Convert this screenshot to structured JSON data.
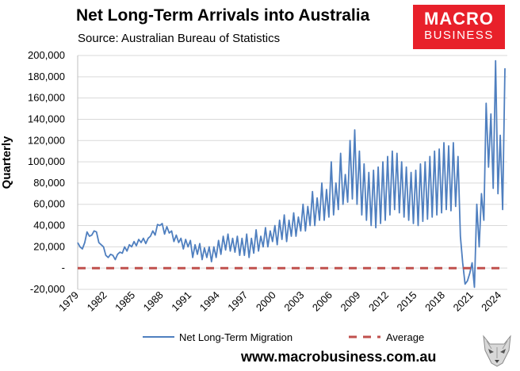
{
  "header": {
    "title": "Net Long-Term Arrivals into Australia",
    "subtitle": "Source: Australian Bureau of Statistics"
  },
  "logo": {
    "line1": "MACRO",
    "line2": "BUSINESS"
  },
  "footer": {
    "url": "www.macrobusiness.com.au"
  },
  "colors": {
    "series": "#4f7fbf",
    "average": "#c0504d",
    "logo_bg": "#e8202a",
    "grid": "#d9d9d9"
  },
  "chart_data": {
    "type": "line",
    "title": "Net Long-Term Arrivals into Australia",
    "ylabel": "Quarterly",
    "ylim": [
      -20000,
      200000
    ],
    "xlim": [
      1979,
      2024.75
    ],
    "grid": true,
    "legend_placement": "bottom",
    "yticks": [
      200000,
      180000,
      160000,
      140000,
      120000,
      100000,
      80000,
      60000,
      40000,
      20000,
      0,
      -20000
    ],
    "ytick_labels": [
      "200,000",
      "180,000",
      "160,000",
      "140,000",
      "120,000",
      "100,000",
      "80,000",
      "60,000",
      "40,000",
      "20,000",
      "-",
      "-20,000"
    ],
    "xticks": [
      1979,
      1982,
      1985,
      1988,
      1991,
      1994,
      1997,
      2000,
      2003,
      2006,
      2009,
      2012,
      2015,
      2018,
      2021,
      2024
    ],
    "xtick_labels": [
      "1979",
      "1982",
      "1985",
      "1988",
      "1991",
      "1994",
      "1997",
      "2000",
      "2003",
      "2006",
      "2009",
      "2012",
      "2015",
      "2018",
      "2021",
      "2024"
    ],
    "series": [
      {
        "name": "Net Long-Term Migration",
        "color": "#4f7fbf",
        "x": [
          1979,
          1979.25,
          1979.5,
          1979.75,
          1980,
          1980.25,
          1980.5,
          1980.75,
          1981,
          1981.25,
          1981.5,
          1981.75,
          1982,
          1982.25,
          1982.5,
          1982.75,
          1983,
          1983.25,
          1983.5,
          1983.75,
          1984,
          1984.25,
          1984.5,
          1984.75,
          1985,
          1985.25,
          1985.5,
          1985.75,
          1986,
          1986.25,
          1986.5,
          1986.75,
          1987,
          1987.25,
          1987.5,
          1987.75,
          1988,
          1988.25,
          1988.5,
          1988.75,
          1989,
          1989.25,
          1989.5,
          1989.75,
          1990,
          1990.25,
          1990.5,
          1990.75,
          1991,
          1991.25,
          1991.5,
          1991.75,
          1992,
          1992.25,
          1992.5,
          1992.75,
          1993,
          1993.25,
          1993.5,
          1993.75,
          1994,
          1994.25,
          1994.5,
          1994.75,
          1995,
          1995.25,
          1995.5,
          1995.75,
          1996,
          1996.25,
          1996.5,
          1996.75,
          1997,
          1997.25,
          1997.5,
          1997.75,
          1998,
          1998.25,
          1998.5,
          1998.75,
          1999,
          1999.25,
          1999.5,
          1999.75,
          2000,
          2000.25,
          2000.5,
          2000.75,
          2001,
          2001.25,
          2001.5,
          2001.75,
          2002,
          2002.25,
          2002.5,
          2002.75,
          2003,
          2003.25,
          2003.5,
          2003.75,
          2004,
          2004.25,
          2004.5,
          2004.75,
          2005,
          2005.25,
          2005.5,
          2005.75,
          2006,
          2006.25,
          2006.5,
          2006.75,
          2007,
          2007.25,
          2007.5,
          2007.75,
          2008,
          2008.25,
          2008.5,
          2008.75,
          2009,
          2009.25,
          2009.5,
          2009.75,
          2010,
          2010.25,
          2010.5,
          2010.75,
          2011,
          2011.25,
          2011.5,
          2011.75,
          2012,
          2012.25,
          2012.5,
          2012.75,
          2013,
          2013.25,
          2013.5,
          2013.75,
          2014,
          2014.25,
          2014.5,
          2014.75,
          2015,
          2015.25,
          2015.5,
          2015.75,
          2016,
          2016.25,
          2016.5,
          2016.75,
          2017,
          2017.25,
          2017.5,
          2017.75,
          2018,
          2018.25,
          2018.5,
          2018.75,
          2019,
          2019.25,
          2019.5,
          2019.75,
          2020,
          2020.25,
          2020.5,
          2020.75,
          2021,
          2021.25,
          2021.5,
          2021.75,
          2022,
          2022.25,
          2022.5,
          2022.75,
          2023,
          2023.25,
          2023.5,
          2023.75,
          2024,
          2024.25,
          2024.5
        ],
        "values": [
          24000,
          20000,
          18000,
          24000,
          34000,
          30000,
          31000,
          35000,
          34000,
          24000,
          22000,
          20000,
          12000,
          10000,
          13000,
          12000,
          8000,
          13000,
          15000,
          14000,
          20000,
          16000,
          22000,
          20000,
          25000,
          21000,
          27000,
          24000,
          28000,
          23000,
          28000,
          30000,
          35000,
          31000,
          41000,
          40000,
          42000,
          32000,
          39000,
          33000,
          35000,
          25000,
          31000,
          24000,
          28000,
          18000,
          27000,
          20000,
          26000,
          10000,
          22000,
          13000,
          23000,
          8000,
          19000,
          10000,
          20000,
          6000,
          20000,
          10000,
          26000,
          13000,
          30000,
          17000,
          32000,
          16000,
          28000,
          15000,
          30000,
          12000,
          28000,
          12000,
          32000,
          10000,
          28000,
          14000,
          36000,
          16000,
          30000,
          20000,
          38000,
          20000,
          35000,
          25000,
          40000,
          22000,
          45000,
          27000,
          50000,
          25000,
          45000,
          30000,
          52000,
          30000,
          48000,
          35000,
          60000,
          35000,
          58000,
          40000,
          72000,
          40000,
          66000,
          45000,
          80000,
          45000,
          74000,
          48000,
          100000,
          50000,
          80000,
          55000,
          108000,
          60000,
          88000,
          62000,
          120000,
          65000,
          130000,
          60000,
          110000,
          50000,
          98000,
          45000,
          90000,
          40000,
          92000,
          38000,
          95000,
          42000,
          100000,
          45000,
          105000,
          50000,
          110000,
          55000,
          108000,
          52000,
          100000,
          48000,
          95000,
          45000,
          90000,
          42000,
          92000,
          40000,
          98000,
          44000,
          100000,
          46000,
          105000,
          48000,
          110000,
          50000,
          112000,
          52000,
          118000,
          55000,
          115000,
          54000,
          118000,
          58000,
          105000,
          30000,
          5000,
          -15000,
          -12000,
          -5000,
          5000,
          -18000,
          60000,
          20000,
          70000,
          45000,
          155000,
          95000,
          145000,
          75000,
          195000,
          70000,
          125000,
          55000,
          188000
        ]
      },
      {
        "name": "Average",
        "color": "#c0504d",
        "x": [
          1979,
          2024.5
        ],
        "values": [
          0,
          0
        ]
      }
    ]
  }
}
